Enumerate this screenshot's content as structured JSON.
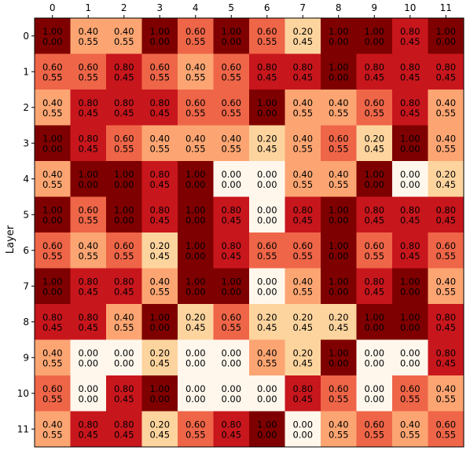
{
  "chart_data": {
    "type": "heatmap",
    "title": "",
    "xlabel": "",
    "ylabel": "Layer",
    "x_ticks": [
      "0",
      "1",
      "2",
      "3",
      "4",
      "5",
      "6",
      "7",
      "8",
      "9",
      "10",
      "11"
    ],
    "y_ticks": [
      "0",
      "1",
      "2",
      "3",
      "4",
      "5",
      "6",
      "7",
      "8",
      "9",
      "10",
      "11"
    ],
    "colormap": "OrRd",
    "value_range": [
      0,
      1
    ],
    "cells": [
      [
        [
          1.0,
          0.0
        ],
        [
          0.4,
          0.55
        ],
        [
          0.4,
          0.55
        ],
        [
          1.0,
          0.0
        ],
        [
          0.6,
          0.55
        ],
        [
          1.0,
          0.0
        ],
        [
          0.6,
          0.55
        ],
        [
          0.2,
          0.45
        ],
        [
          1.0,
          0.0
        ],
        [
          1.0,
          0.0
        ],
        [
          0.8,
          0.45
        ],
        [
          1.0,
          0.0
        ]
      ],
      [
        [
          0.6,
          0.55
        ],
        [
          0.6,
          0.55
        ],
        [
          0.8,
          0.45
        ],
        [
          0.6,
          0.55
        ],
        [
          0.4,
          0.55
        ],
        [
          0.6,
          0.55
        ],
        [
          0.8,
          0.45
        ],
        [
          0.8,
          0.45
        ],
        [
          1.0,
          0.0
        ],
        [
          0.8,
          0.45
        ],
        [
          0.8,
          0.45
        ],
        [
          0.8,
          0.45
        ]
      ],
      [
        [
          0.4,
          0.55
        ],
        [
          0.8,
          0.45
        ],
        [
          0.8,
          0.45
        ],
        [
          0.8,
          0.45
        ],
        [
          0.6,
          0.55
        ],
        [
          0.6,
          0.55
        ],
        [
          1.0,
          0.0
        ],
        [
          0.4,
          0.55
        ],
        [
          0.4,
          0.55
        ],
        [
          0.6,
          0.55
        ],
        [
          0.8,
          0.45
        ],
        [
          0.4,
          0.55
        ]
      ],
      [
        [
          1.0,
          0.0
        ],
        [
          0.8,
          0.45
        ],
        [
          0.6,
          0.55
        ],
        [
          0.4,
          0.55
        ],
        [
          0.4,
          0.55
        ],
        [
          0.4,
          0.55
        ],
        [
          0.2,
          0.45
        ],
        [
          0.4,
          0.55
        ],
        [
          0.6,
          0.55
        ],
        [
          0.2,
          0.45
        ],
        [
          1.0,
          0.0
        ],
        [
          0.4,
          0.55
        ]
      ],
      [
        [
          0.4,
          0.55
        ],
        [
          1.0,
          0.0
        ],
        [
          1.0,
          0.0
        ],
        [
          0.8,
          0.45
        ],
        [
          1.0,
          0.0
        ],
        [
          0.0,
          0.0
        ],
        [
          0.0,
          0.0
        ],
        [
          0.4,
          0.55
        ],
        [
          0.4,
          0.55
        ],
        [
          1.0,
          0.0
        ],
        [
          0.0,
          0.0
        ],
        [
          0.2,
          0.45
        ]
      ],
      [
        [
          1.0,
          0.0
        ],
        [
          0.6,
          0.55
        ],
        [
          1.0,
          0.0
        ],
        [
          0.8,
          0.45
        ],
        [
          1.0,
          0.0
        ],
        [
          0.8,
          0.45
        ],
        [
          0.0,
          0.0
        ],
        [
          0.8,
          0.45
        ],
        [
          1.0,
          0.0
        ],
        [
          0.8,
          0.45
        ],
        [
          0.8,
          0.45
        ],
        [
          0.8,
          0.45
        ]
      ],
      [
        [
          0.6,
          0.55
        ],
        [
          0.4,
          0.55
        ],
        [
          0.6,
          0.55
        ],
        [
          0.2,
          0.45
        ],
        [
          1.0,
          0.0
        ],
        [
          0.8,
          0.45
        ],
        [
          0.6,
          0.55
        ],
        [
          0.6,
          0.55
        ],
        [
          1.0,
          0.0
        ],
        [
          0.6,
          0.55
        ],
        [
          0.8,
          0.45
        ],
        [
          0.6,
          0.55
        ]
      ],
      [
        [
          1.0,
          0.0
        ],
        [
          0.8,
          0.45
        ],
        [
          0.8,
          0.45
        ],
        [
          0.4,
          0.55
        ],
        [
          1.0,
          0.0
        ],
        [
          1.0,
          0.0
        ],
        [
          0.0,
          0.0
        ],
        [
          0.4,
          0.55
        ],
        [
          1.0,
          0.0
        ],
        [
          0.8,
          0.45
        ],
        [
          1.0,
          0.0
        ],
        [
          0.4,
          0.55
        ]
      ],
      [
        [
          0.8,
          0.45
        ],
        [
          0.8,
          0.45
        ],
        [
          0.4,
          0.55
        ],
        [
          1.0,
          0.0
        ],
        [
          0.2,
          0.45
        ],
        [
          0.6,
          0.55
        ],
        [
          0.2,
          0.45
        ],
        [
          0.2,
          0.45
        ],
        [
          0.2,
          0.45
        ],
        [
          1.0,
          0.0
        ],
        [
          1.0,
          0.0
        ],
        [
          0.8,
          0.45
        ]
      ],
      [
        [
          0.4,
          0.55
        ],
        [
          0.0,
          0.0
        ],
        [
          0.0,
          0.0
        ],
        [
          0.2,
          0.45
        ],
        [
          0.0,
          0.0
        ],
        [
          0.0,
          0.0
        ],
        [
          0.4,
          0.55
        ],
        [
          0.2,
          0.45
        ],
        [
          1.0,
          0.0
        ],
        [
          0.0,
          0.0
        ],
        [
          0.0,
          0.0
        ],
        [
          0.8,
          0.45
        ]
      ],
      [
        [
          0.6,
          0.55
        ],
        [
          0.0,
          0.0
        ],
        [
          0.8,
          0.45
        ],
        [
          1.0,
          0.0
        ],
        [
          0.0,
          0.0
        ],
        [
          0.0,
          0.0
        ],
        [
          0.0,
          0.0
        ],
        [
          0.8,
          0.45
        ],
        [
          0.6,
          0.55
        ],
        [
          0.0,
          0.0
        ],
        [
          0.6,
          0.55
        ],
        [
          0.4,
          0.55
        ]
      ],
      [
        [
          0.4,
          0.55
        ],
        [
          0.8,
          0.45
        ],
        [
          0.8,
          0.45
        ],
        [
          0.2,
          0.45
        ],
        [
          0.6,
          0.55
        ],
        [
          0.8,
          0.45
        ],
        [
          1.0,
          0.0
        ],
        [
          0.0,
          0.0
        ],
        [
          0.4,
          0.55
        ],
        [
          0.6,
          0.55
        ],
        [
          0.4,
          0.55
        ],
        [
          0.6,
          0.55
        ]
      ]
    ],
    "colors": {
      "0.0": "#fff7ec",
      "0.2": "#fdd49e",
      "0.4": "#fca572",
      "0.6": "#ef6548",
      "0.8": "#c8161d",
      "1.0": "#7f0000"
    }
  }
}
